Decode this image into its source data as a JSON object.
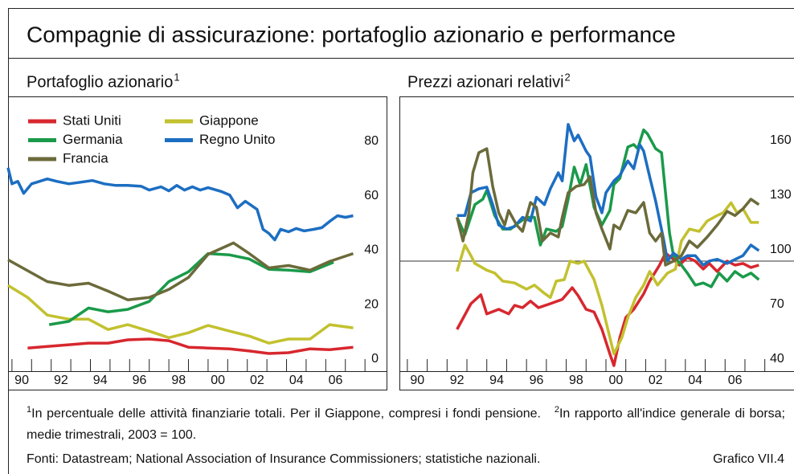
{
  "title": "Compagnie di assicurazione: portafoglio azionario e performance",
  "notes": [
    {
      "marker": "1",
      "text": "In percentuale delle attività finanziarie totali. Per il Giappone, compresi i fondi pensione."
    },
    {
      "marker": "2",
      "text": "In rapporto all'indice generale di borsa; medie trimestrali, 2003 = 100."
    }
  ],
  "source": "Fonti: Datastream; National Association of Insurance Commissioners; statistiche nazionali.",
  "figure_label": "Grafico VII.4",
  "chart_data": [
    {
      "type": "line",
      "subtitle": "Portafoglio azionario",
      "subtitle_ref": "1",
      "xlim": [
        1989.8,
        2009.1
      ],
      "ylim": [
        0,
        100.6
      ],
      "legend": "top-left",
      "xticks": [
        {
          "value": 1990.5,
          "label": "90"
        },
        {
          "value": 1992.5,
          "label": "92"
        },
        {
          "value": 1994.5,
          "label": "94"
        },
        {
          "value": 1996.5,
          "label": "96"
        },
        {
          "value": 1998.5,
          "label": "98"
        },
        {
          "value": 2000.5,
          "label": "00"
        },
        {
          "value": 2002.5,
          "label": "02"
        },
        {
          "value": 2004.5,
          "label": "04"
        },
        {
          "value": 2006.5,
          "label": "06"
        }
      ],
      "xminorticks": [
        1990,
        1991,
        1992,
        1993,
        1994,
        1995,
        1996,
        1997,
        1998,
        1999,
        2000,
        2001,
        2002,
        2003,
        2004,
        2005,
        2006,
        2007,
        2008
      ],
      "yticks": [
        0,
        20,
        40,
        60,
        80
      ],
      "series": [
        {
          "name": "Stati Uniti",
          "color": "#d7272e",
          "x": [
            1990.8,
            1991.8,
            1992.9,
            1993.9,
            1994.9,
            1995.9,
            1997.0,
            1998.0,
            1999.0,
            2000.0,
            2001.1,
            2002.1,
            2003.1,
            2004.1,
            2005.2,
            2006.2,
            2007.4
          ],
          "values": [
            8.2,
            8.8,
            9.4,
            10,
            10,
            11.2,
            11.5,
            10.9,
            8.5,
            8.2,
            7.9,
            7.1,
            6.2,
            6.5,
            7.9,
            7.6,
            8.5
          ]
        },
        {
          "name": "Giappone",
          "color": "#c2c12f",
          "x": [
            1989.8,
            1990.8,
            1991.8,
            1992.9,
            1993.9,
            1994.9,
            1995.9,
            1997.0,
            1998.0,
            1999.0,
            2000.0,
            2001.1,
            2002.1,
            2003.1,
            2004.1,
            2005.2,
            2006.2,
            2007.4
          ],
          "values": [
            31.2,
            26.8,
            20.3,
            18.8,
            18.8,
            15,
            16.8,
            14.4,
            12,
            13.8,
            16.5,
            14.4,
            12.6,
            10,
            11.5,
            11.5,
            16.8,
            15.6
          ]
        },
        {
          "name": "Germania",
          "color": "#1a9a4a",
          "x": [
            1991.9,
            1992.9,
            1993.9,
            1994.9,
            1995.9,
            1997.0,
            1998.0,
            1999.0,
            2000.0,
            2001.1,
            2002.1,
            2003.1,
            2004.1,
            2005.2,
            2006.4
          ],
          "values": [
            16.8,
            18,
            22.9,
            21.5,
            22.4,
            25.3,
            32.6,
            36.2,
            42.9,
            42.4,
            40.9,
            37.1,
            36.8,
            36.2,
            39.7
          ]
        },
        {
          "name": "Regno Unito",
          "color": "#1c6ec2",
          "x": [
            1989.8,
            1990.0,
            1990.3,
            1990.6,
            1991.0,
            1991.4,
            1991.8,
            1992.3,
            1992.9,
            1993.5,
            1994.1,
            1994.7,
            1995.3,
            1995.9,
            1996.6,
            1997.0,
            1997.6,
            1998.0,
            1998.4,
            1998.8,
            1999.2,
            1999.6,
            2000.0,
            2000.7,
            2001.1,
            2001.5,
            2001.9,
            2002.2,
            2002.5,
            2002.8,
            2003.1,
            2003.4,
            2003.7,
            2004.1,
            2004.5,
            2004.9,
            2005.4,
            2005.8,
            2006.2,
            2006.6,
            2007.0,
            2007.4
          ],
          "values": [
            74.4,
            68.5,
            69.4,
            65,
            68.5,
            69.4,
            70.3,
            69.4,
            68.5,
            69.1,
            69.7,
            68.5,
            67.9,
            67.9,
            67.6,
            66.2,
            67.4,
            65.9,
            67.9,
            66.2,
            67.4,
            66.2,
            67.1,
            65.6,
            64.4,
            59.7,
            62.1,
            60.6,
            59.1,
            51.8,
            50.3,
            47.9,
            51.8,
            50.9,
            52.1,
            51.2,
            51.8,
            52.4,
            54.7,
            56.8,
            56.2,
            56.8
          ]
        },
        {
          "name": "Francia",
          "color": "#6b6a3a",
          "x": [
            1989.8,
            1991.8,
            1992.9,
            1993.9,
            1994.9,
            1995.9,
            1997.0,
            1998.0,
            1999.0,
            2000.0,
            2001.3,
            2002.1,
            2003.1,
            2004.1,
            2005.2,
            2006.2,
            2007.4
          ],
          "values": [
            40.6,
            32.6,
            31.2,
            32,
            29.1,
            25.9,
            26.8,
            29.7,
            34.1,
            42.6,
            46.8,
            42.9,
            37.6,
            38.5,
            36.8,
            40,
            42.9
          ]
        }
      ]
    },
    {
      "type": "line",
      "subtitle": "Prezzi azionari relativi",
      "subtitle_ref": "2",
      "xlim": [
        1989.6,
        2009.47
      ],
      "ylim": [
        40,
        190.4
      ],
      "hline": 100,
      "xticks": [
        {
          "value": 1990.5,
          "label": "90"
        },
        {
          "value": 1992.5,
          "label": "92"
        },
        {
          "value": 1994.5,
          "label": "94"
        },
        {
          "value": 1996.5,
          "label": "96"
        },
        {
          "value": 1998.5,
          "label": "98"
        },
        {
          "value": 2000.5,
          "label": "00"
        },
        {
          "value": 2002.5,
          "label": "02"
        },
        {
          "value": 2004.5,
          "label": "04"
        },
        {
          "value": 2006.5,
          "label": "06"
        }
      ],
      "xminorticks": [
        1990,
        1991,
        1992,
        1993,
        1994,
        1995,
        1996,
        1997,
        1998,
        1999,
        2000,
        2001,
        2002,
        2003,
        2004,
        2005,
        2006,
        2007,
        2008
      ],
      "yticks": [
        40,
        70,
        100,
        130,
        160
      ],
      "series": [
        {
          "color": "#d7272e",
          "x": [
            1992.5,
            1993.2,
            1993.7,
            1994.0,
            1994.6,
            1995.1,
            1995.4,
            1995.8,
            1996.2,
            1996.6,
            1997.2,
            1997.8,
            1998.3,
            1998.6,
            1999.0,
            1999.4,
            1999.8,
            2000.2,
            2000.4,
            2000.7,
            2001.0,
            2001.4,
            2001.9,
            2002.2,
            2002.7,
            2003.0,
            2003.4,
            2003.7,
            2004.1,
            2004.5,
            2004.9,
            2005.2,
            2005.6,
            2006.1,
            2006.5,
            2006.9,
            2007.3,
            2007.7
          ],
          "values": [
            62.5,
            76.6,
            81.5,
            71,
            73.5,
            71,
            75.7,
            74.4,
            78,
            74.4,
            76.6,
            79,
            85.4,
            81,
            73.5,
            72,
            62.5,
            49,
            42.6,
            58,
            69,
            73.5,
            82,
            89,
            97.8,
            104.4,
            101,
            97.8,
            102,
            100,
            95.6,
            98.7,
            94.3,
            100,
            97.8,
            98.7,
            96.5,
            97.8
          ]
        },
        {
          "color": "#c2c12f",
          "x": [
            1992.5,
            1992.9,
            1993.2,
            1993.4,
            1994.0,
            1994.4,
            1994.8,
            1995.4,
            1996.0,
            1996.4,
            1996.9,
            1997.2,
            1997.5,
            1997.9,
            1998.2,
            1998.6,
            1998.9,
            1999.4,
            1999.8,
            2000.2,
            2000.4,
            2000.8,
            2001.1,
            2001.5,
            2001.9,
            2002.2,
            2002.6,
            2003.1,
            2003.5,
            2003.8,
            2004.2,
            2004.7,
            2005.1,
            2005.6,
            2005.9,
            2006.3,
            2006.6,
            2006.9,
            2007.3,
            2007.7
          ],
          "values": [
            94.3,
            108.8,
            103,
            98.7,
            95,
            93.4,
            89,
            88,
            84.6,
            86.8,
            82.3,
            80,
            89,
            89.8,
            100,
            98.7,
            100,
            89.8,
            75.7,
            58,
            49,
            58,
            69,
            80,
            86.8,
            94.3,
            86.8,
            93.4,
            95.6,
            111,
            117.6,
            116.3,
            122,
            125,
            126.5,
            132,
            126.5,
            128.7,
            121.2,
            121.2
          ]
        },
        {
          "color": "#1a9a4a",
          "x": [
            1992.5,
            1992.9,
            1993.4,
            1993.8,
            1994.0,
            1994.4,
            1994.8,
            1995.2,
            1995.6,
            1996.0,
            1996.4,
            1996.7,
            1997.0,
            1997.5,
            1997.8,
            1998.1,
            1998.4,
            1998.7,
            1999.0,
            1999.4,
            1999.8,
            2000.2,
            2000.4,
            2000.7,
            2001.1,
            2001.4,
            2001.6,
            2001.9,
            2002.1,
            2002.5,
            2002.8,
            2003.0,
            2003.2,
            2003.4,
            2003.8,
            2004.1,
            2004.5,
            2004.9,
            2005.3,
            2005.7,
            2006.1,
            2006.5,
            2006.9,
            2007.3,
            2007.7
          ],
          "values": [
            124,
            114.5,
            131,
            134,
            138.8,
            125,
            117.6,
            117.6,
            121,
            124,
            124,
            108.8,
            117.6,
            116.3,
            119,
            134,
            151.6,
            142,
            153,
            129.5,
            119.8,
            127.8,
            142,
            145.4,
            162.6,
            164,
            161.7,
            172,
            169.7,
            161.7,
            159.5,
            137.5,
            115.4,
            103,
            97.8,
            93.4,
            86.8,
            88,
            85.9,
            93.4,
            89,
            94.3,
            91.2,
            93.4,
            89.8
          ]
        },
        {
          "color": "#1c6ec2",
          "x": [
            1992.5,
            1992.9,
            1993.2,
            1993.6,
            1994.0,
            1994.3,
            1994.6,
            1995.0,
            1995.4,
            1995.8,
            1996.2,
            1996.5,
            1996.9,
            1997.2,
            1997.6,
            1997.8,
            1998.1,
            1998.4,
            1998.6,
            1999.0,
            1999.2,
            1999.5,
            1999.8,
            2000.0,
            2000.4,
            2000.7,
            2001.1,
            2001.4,
            2001.7,
            2001.9,
            2002.2,
            2002.5,
            2002.9,
            2003.1,
            2003.4,
            2003.8,
            2004.1,
            2004.5,
            2004.9,
            2005.2,
            2005.6,
            2006.1,
            2006.5,
            2006.9,
            2007.3,
            2007.7
          ],
          "values": [
            125,
            125,
            137.5,
            139.7,
            140.6,
            131,
            119.8,
            117.6,
            119,
            124,
            122,
            135,
            131,
            139.7,
            148.5,
            144,
            175,
            166,
            169.2,
            160.4,
            157.3,
            135.3,
            126.5,
            137.5,
            144,
            147,
            155,
            150.7,
            164,
            160.4,
            146.3,
            133,
            112,
            100,
            104.4,
            101,
            103,
            103,
            97.8,
            100,
            101,
            98.7,
            100.9,
            103,
            108.8,
            105.7
          ]
        },
        {
          "color": "#6b6a3a",
          "x": [
            1992.5,
            1992.8,
            1993.1,
            1993.3,
            1993.6,
            1994.0,
            1994.3,
            1994.6,
            1994.9,
            1995.1,
            1995.5,
            1995.8,
            1996.2,
            1996.5,
            1996.8,
            1997.2,
            1997.6,
            1997.8,
            1998.1,
            1998.5,
            1998.9,
            1999.2,
            1999.5,
            1999.8,
            2000.2,
            2000.4,
            2000.7,
            2001.1,
            2001.5,
            2001.9,
            2002.2,
            2002.5,
            2002.8,
            2003.0,
            2003.4,
            2003.8,
            2004.2,
            2004.6,
            2005.1,
            2005.6,
            2006.1,
            2006.5,
            2006.9,
            2007.3,
            2007.7
          ],
          "values": [
            124,
            111,
            126.5,
            148.5,
            159.5,
            161.7,
            141,
            126.5,
            119.8,
            127.8,
            119.8,
            116.3,
            132.2,
            129.5,
            111,
            115.4,
            113.2,
            124,
            137.5,
            141,
            142,
            146.3,
            126.5,
            117.6,
            106.6,
            119.8,
            117.6,
            127.8,
            126.5,
            132.2,
            115.4,
            111,
            115.4,
            97.8,
            100,
            103,
            111,
            107.5,
            113.2,
            119.8,
            127.3,
            125,
            128.7,
            134,
            131
          ]
        }
      ]
    }
  ]
}
